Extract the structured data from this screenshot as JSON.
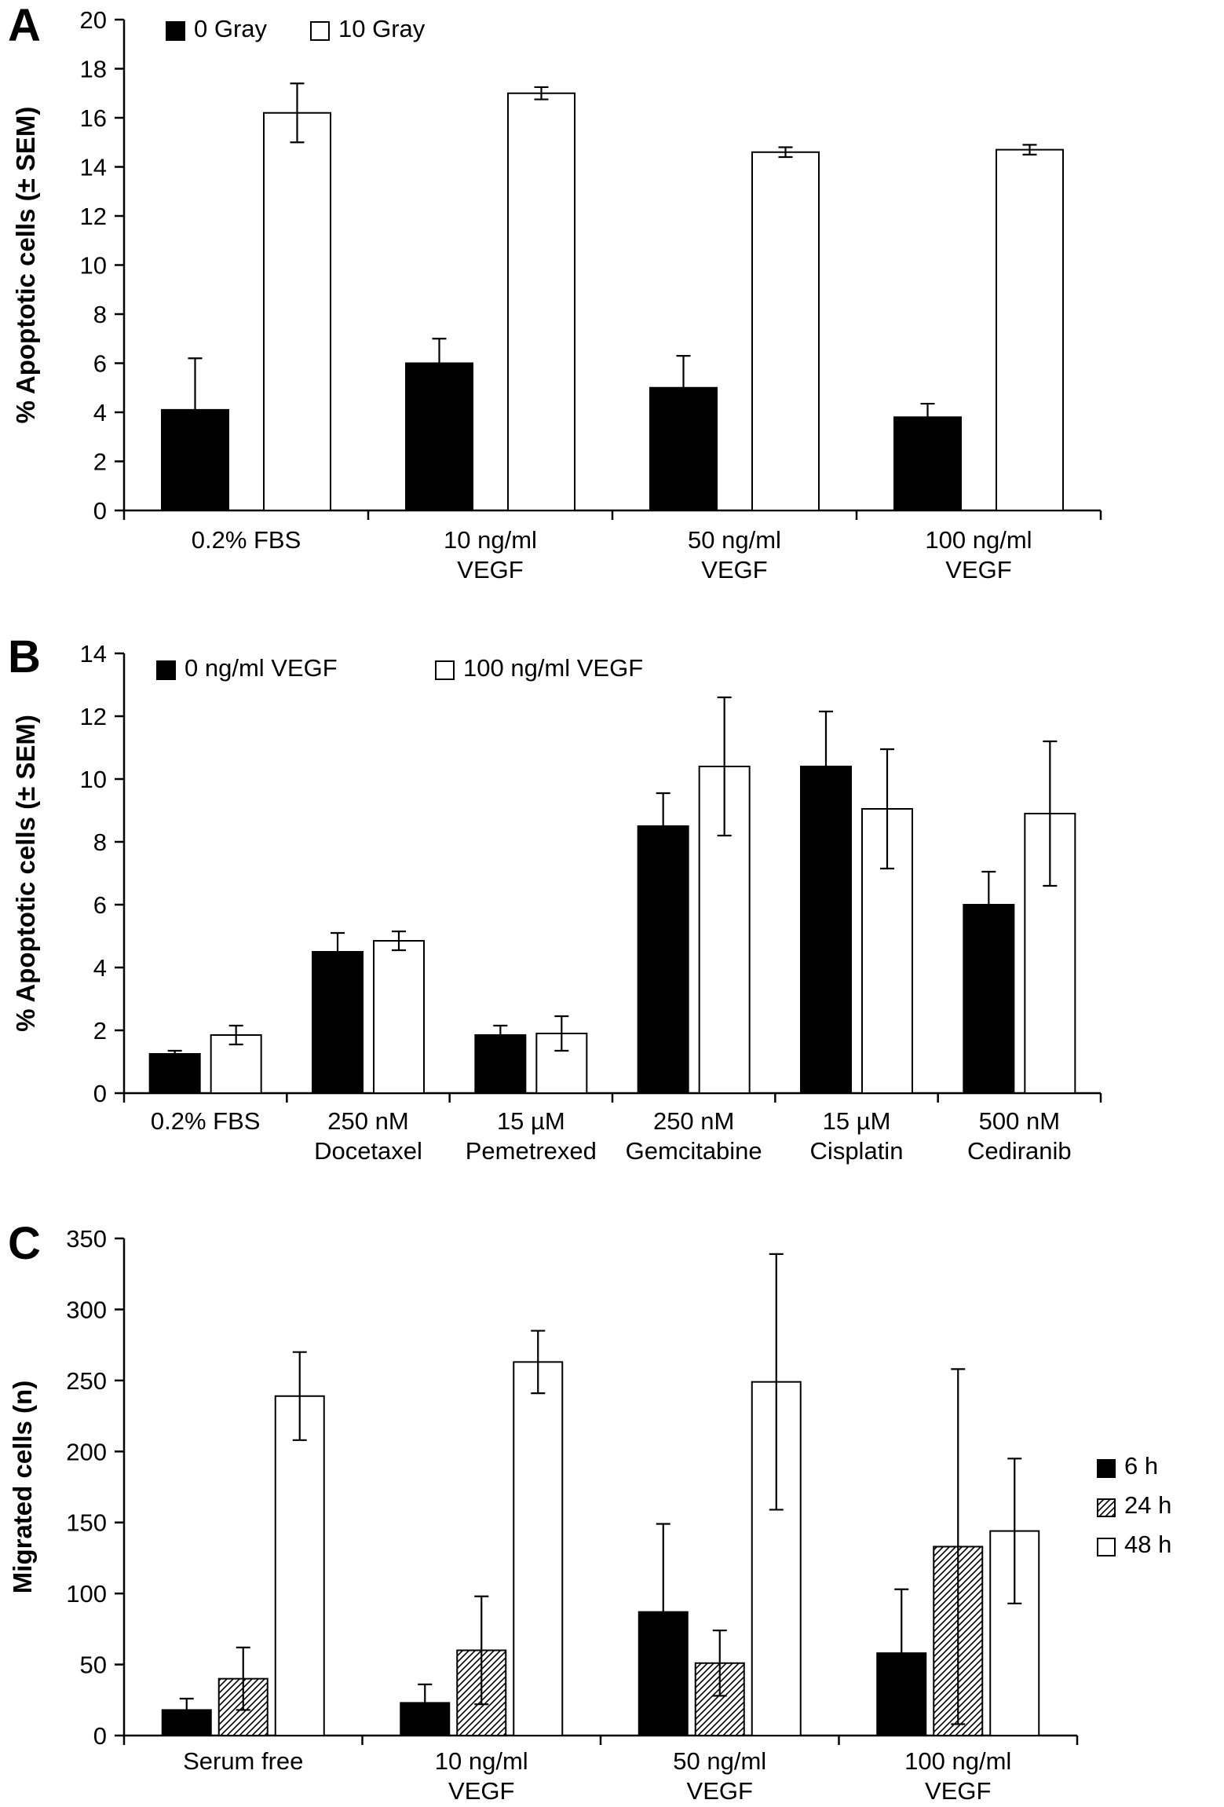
{
  "figure": {
    "background": "#ffffff",
    "bar_fill_dark": "#000000",
    "bar_fill_light": "#ffffff",
    "axis_color": "#000000"
  },
  "chart_data": [
    {
      "type": "bar",
      "panel": "A",
      "title": "",
      "xlabel": "",
      "ylabel": "% Apoptotic cells (± SEM)",
      "ylim": [
        0,
        20
      ],
      "ytick_step": 2,
      "yticks": [
        0,
        2,
        4,
        6,
        8,
        10,
        12,
        14,
        16,
        18,
        20
      ],
      "grid": false,
      "legend_position": "top-inside",
      "error_bars": true,
      "categories": [
        [
          "0.2% FBS"
        ],
        [
          "10 ng/ml",
          "VEGF"
        ],
        [
          "50 ng/ml",
          "VEGF"
        ],
        [
          "100 ng/ml",
          "VEGF"
        ]
      ],
      "series": [
        {
          "name": "0 Gray",
          "style": "black",
          "values": [
            4.1,
            6.0,
            5.0,
            3.8
          ],
          "errors": [
            2.1,
            1.0,
            1.3,
            0.55
          ]
        },
        {
          "name": "10 Gray",
          "style": "white",
          "values": [
            16.2,
            17.0,
            14.6,
            14.7
          ],
          "errors": [
            1.2,
            0.25,
            0.2,
            0.2
          ]
        }
      ]
    },
    {
      "type": "bar",
      "panel": "B",
      "title": "",
      "xlabel": "",
      "ylabel": "% Apoptotic cells (± SEM)",
      "ylim": [
        0,
        14
      ],
      "ytick_step": 2,
      "yticks": [
        0,
        2,
        4,
        6,
        8,
        10,
        12,
        14
      ],
      "grid": false,
      "legend_position": "top-inside",
      "error_bars": true,
      "categories": [
        [
          "0.2% FBS"
        ],
        [
          "250 nM",
          "Docetaxel"
        ],
        [
          "15 µM",
          "Pemetrexed"
        ],
        [
          "250 nM",
          "Gemcitabine"
        ],
        [
          "15 µM",
          "Cisplatin"
        ],
        [
          "500 nM",
          "Cediranib"
        ]
      ],
      "series": [
        {
          "name": "0 ng/ml  VEGF",
          "style": "black",
          "values": [
            1.25,
            4.5,
            1.85,
            8.5,
            10.4,
            6.0
          ],
          "errors": [
            0.1,
            0.6,
            0.3,
            1.05,
            1.75,
            1.05
          ]
        },
        {
          "name": "100 ng/ml  VEGF",
          "style": "white",
          "values": [
            1.85,
            4.85,
            1.9,
            10.4,
            9.05,
            8.9
          ],
          "errors": [
            0.3,
            0.3,
            0.55,
            2.2,
            1.9,
            2.3
          ]
        }
      ]
    },
    {
      "type": "bar",
      "panel": "C",
      "title": "",
      "xlabel": "",
      "ylabel": "Migrated cells (n)",
      "ylim": [
        0,
        350
      ],
      "ytick_step": 50,
      "yticks": [
        0,
        50,
        100,
        150,
        200,
        250,
        300,
        350
      ],
      "grid": false,
      "legend_position": "right-outside",
      "error_bars": true,
      "categories": [
        [
          "Serum free"
        ],
        [
          "10 ng/ml",
          "VEGF"
        ],
        [
          "50 ng/ml",
          "VEGF"
        ],
        [
          "100 ng/ml",
          "VEGF"
        ]
      ],
      "series": [
        {
          "name": "6 h",
          "style": "black",
          "values": [
            18,
            23,
            87,
            58
          ],
          "errors": [
            8,
            13,
            62,
            45
          ]
        },
        {
          "name": "24 h",
          "style": "hatch",
          "values": [
            40,
            60,
            51,
            133
          ],
          "errors": [
            22,
            38,
            23,
            125
          ]
        },
        {
          "name": "48 h",
          "style": "white",
          "values": [
            239,
            263,
            249,
            144
          ],
          "errors": [
            31,
            22,
            90,
            51
          ]
        }
      ]
    }
  ]
}
